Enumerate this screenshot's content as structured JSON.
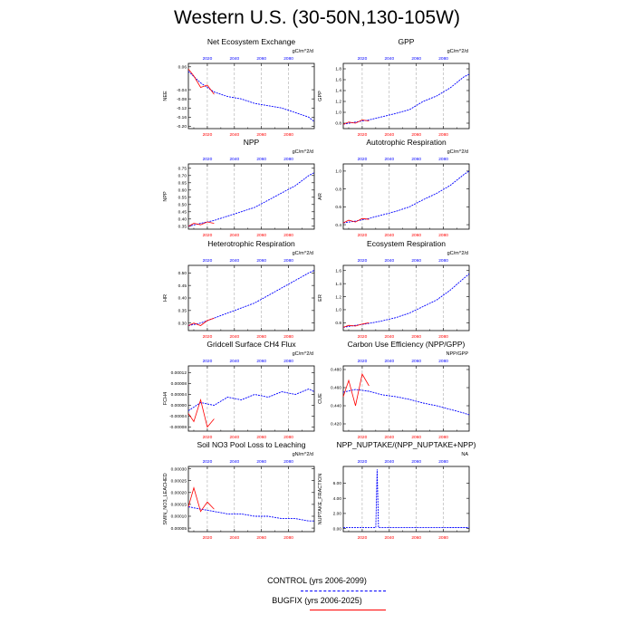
{
  "page": {
    "title": "Western U.S. (30-50N,130-105W)"
  },
  "legend": {
    "items": [
      {
        "label": "CONTROL (yrs 2006-2099)",
        "color": "#0000ff",
        "style": "dashed"
      },
      {
        "label": "BUGFIX (yrs 2006-2025)",
        "color": "#ff0000",
        "style": "solid"
      }
    ]
  },
  "chart_data": [
    {
      "type": "line",
      "title": "Net Ecosystem Exchange",
      "ylabel": "NEE",
      "units": "gC/m^2/d",
      "xlim": [
        2006,
        2099
      ],
      "xticks": [
        "2020",
        "2040",
        "2060",
        "2080"
      ],
      "ylim": [
        -0.21,
        0.075
      ],
      "yticks": [
        "0.06",
        "-0.04",
        "-0.08",
        "-0.12",
        "-0.16",
        "-0.20"
      ],
      "series": [
        {
          "name": "CONTROL",
          "x": [
            2006,
            2015,
            2025,
            2035,
            2045,
            2055,
            2065,
            2075,
            2085,
            2095,
            2099
          ],
          "y": [
            0.04,
            -0.01,
            -0.05,
            -0.07,
            -0.08,
            -0.1,
            -0.11,
            -0.12,
            -0.14,
            -0.16,
            -0.18
          ]
        },
        {
          "name": "BUGFIX",
          "x": [
            2006,
            2010,
            2015,
            2020,
            2025
          ],
          "y": [
            0.05,
            0.02,
            -0.03,
            -0.02,
            -0.06
          ]
        }
      ]
    },
    {
      "type": "line",
      "title": "GPP",
      "ylabel": "GPP",
      "units": "gC/m^2/d",
      "xlim": [
        2006,
        2099
      ],
      "xticks": [
        "2020",
        "2040",
        "2060",
        "2080"
      ],
      "ylim": [
        0.7,
        1.9
      ],
      "yticks": [
        "0.8",
        "1.0",
        "1.2",
        "1.4",
        "1.6",
        "1.8"
      ],
      "series": [
        {
          "name": "CONTROL",
          "x": [
            2006,
            2015,
            2025,
            2035,
            2045,
            2055,
            2065,
            2075,
            2085,
            2095,
            2099
          ],
          "y": [
            0.78,
            0.82,
            0.86,
            0.92,
            0.98,
            1.05,
            1.2,
            1.3,
            1.45,
            1.65,
            1.7
          ]
        },
        {
          "name": "BUGFIX",
          "x": [
            2006,
            2010,
            2015,
            2020,
            2025
          ],
          "y": [
            0.78,
            0.82,
            0.8,
            0.86,
            0.84
          ]
        }
      ]
    },
    {
      "type": "line",
      "title": "NPP",
      "ylabel": "NPP",
      "units": "gC/m^2/d",
      "xlim": [
        2006,
        2099
      ],
      "xticks": [
        "2020",
        "2040",
        "2060",
        "2080"
      ],
      "ylim": [
        0.33,
        0.78
      ],
      "yticks": [
        "0.35",
        "0.40",
        "0.45",
        "0.50",
        "0.55",
        "0.60",
        "0.65",
        "0.70",
        "0.75"
      ],
      "series": [
        {
          "name": "CONTROL",
          "x": [
            2006,
            2015,
            2025,
            2035,
            2045,
            2055,
            2065,
            2075,
            2085,
            2095,
            2099
          ],
          "y": [
            0.35,
            0.37,
            0.39,
            0.42,
            0.45,
            0.48,
            0.53,
            0.58,
            0.63,
            0.7,
            0.72
          ]
        },
        {
          "name": "BUGFIX",
          "x": [
            2006,
            2010,
            2015,
            2020,
            2025
          ],
          "y": [
            0.35,
            0.37,
            0.36,
            0.38,
            0.37
          ]
        }
      ]
    },
    {
      "type": "line",
      "title": "Autotrophic Respiration",
      "ylabel": "AR",
      "units": "gC/m^2/d",
      "xlim": [
        2006,
        2099
      ],
      "xticks": [
        "2020",
        "2040",
        "2060",
        "2080"
      ],
      "ylim": [
        0.35,
        1.08
      ],
      "yticks": [
        "0.4",
        "0.6",
        "0.8",
        "1.0"
      ],
      "series": [
        {
          "name": "CONTROL",
          "x": [
            2006,
            2015,
            2025,
            2035,
            2045,
            2055,
            2065,
            2075,
            2085,
            2095,
            2099
          ],
          "y": [
            0.42,
            0.44,
            0.47,
            0.51,
            0.55,
            0.6,
            0.68,
            0.75,
            0.84,
            0.96,
            1.0
          ]
        },
        {
          "name": "BUGFIX",
          "x": [
            2006,
            2010,
            2015,
            2020,
            2025
          ],
          "y": [
            0.42,
            0.45,
            0.43,
            0.47,
            0.46
          ]
        }
      ]
    },
    {
      "type": "line",
      "title": "Heterotrophic Respiration",
      "ylabel": "HR",
      "units": "gC/m^2/d",
      "xlim": [
        2006,
        2099
      ],
      "xticks": [
        "2020",
        "2040",
        "2060",
        "2080"
      ],
      "ylim": [
        0.27,
        0.53
      ],
      "yticks": [
        "0.30",
        "0.35",
        "0.40",
        "0.45",
        "0.50"
      ],
      "series": [
        {
          "name": "CONTROL",
          "x": [
            2006,
            2015,
            2025,
            2035,
            2045,
            2055,
            2065,
            2075,
            2085,
            2095,
            2099
          ],
          "y": [
            0.29,
            0.3,
            0.32,
            0.34,
            0.36,
            0.38,
            0.41,
            0.44,
            0.47,
            0.5,
            0.51
          ]
        },
        {
          "name": "BUGFIX",
          "x": [
            2006,
            2010,
            2015,
            2020,
            2025
          ],
          "y": [
            0.29,
            0.3,
            0.29,
            0.31,
            0.32
          ]
        }
      ]
    },
    {
      "type": "line",
      "title": "Ecosystem Respiration",
      "ylabel": "ER",
      "units": "gC/m^2/d",
      "xlim": [
        2006,
        2099
      ],
      "xticks": [
        "2020",
        "2040",
        "2060",
        "2080"
      ],
      "ylim": [
        0.68,
        1.68
      ],
      "yticks": [
        "0.8",
        "1.0",
        "1.2",
        "1.4",
        "1.6"
      ],
      "series": [
        {
          "name": "CONTROL",
          "x": [
            2006,
            2015,
            2025,
            2035,
            2045,
            2055,
            2065,
            2075,
            2085,
            2095,
            2099
          ],
          "y": [
            0.73,
            0.76,
            0.79,
            0.83,
            0.88,
            0.95,
            1.05,
            1.15,
            1.3,
            1.48,
            1.55
          ]
        },
        {
          "name": "BUGFIX",
          "x": [
            2006,
            2010,
            2015,
            2020,
            2025
          ],
          "y": [
            0.73,
            0.76,
            0.75,
            0.78,
            0.8
          ]
        }
      ]
    },
    {
      "type": "line",
      "title": "Gridcell Surface CH4 Flux",
      "ylabel": "FCH4",
      "units": "gC/m^2/d",
      "xlim": [
        2006,
        2099
      ],
      "xticks": [
        "2020",
        "2040",
        "2060",
        "2080"
      ],
      "ylim": [
        -9.5e-05,
        0.000145
      ],
      "yticks": [
        "0.00012",
        "0.00008",
        "0.00004",
        "0.00000",
        "-0.00004",
        "-0.00008"
      ],
      "series": [
        {
          "name": "CONTROL",
          "x": [
            2006,
            2015,
            2025,
            2035,
            2045,
            2055,
            2065,
            2075,
            2085,
            2095,
            2099
          ],
          "y": [
            -2e-05,
            1e-05,
            0.0,
            3e-05,
            2e-05,
            4e-05,
            3e-05,
            5e-05,
            4e-05,
            6e-05,
            5e-05
          ]
        },
        {
          "name": "BUGFIX",
          "x": [
            2006,
            2010,
            2015,
            2020,
            2025
          ],
          "y": [
            -3e-05,
            -6e-05,
            2e-05,
            -8e-05,
            -5e-05
          ]
        }
      ]
    },
    {
      "type": "line",
      "title": "Carbon Use Efficiency (NPP/GPP)",
      "ylabel": "CUE",
      "units": "NPP/GPP",
      "xlim": [
        2006,
        2099
      ],
      "xticks": [
        "2020",
        "2040",
        "2060",
        "2080"
      ],
      "ylim": [
        0.412,
        0.484
      ],
      "yticks": [
        "0.480",
        "0.460",
        "0.440",
        "0.420"
      ],
      "series": [
        {
          "name": "CONTROL",
          "x": [
            2006,
            2015,
            2025,
            2035,
            2045,
            2055,
            2065,
            2075,
            2085,
            2095,
            2099
          ],
          "y": [
            0.455,
            0.458,
            0.456,
            0.452,
            0.45,
            0.447,
            0.443,
            0.44,
            0.436,
            0.432,
            0.43
          ]
        },
        {
          "name": "BUGFIX",
          "x": [
            2006,
            2010,
            2015,
            2020,
            2025
          ],
          "y": [
            0.45,
            0.468,
            0.44,
            0.475,
            0.462
          ]
        }
      ]
    },
    {
      "type": "line",
      "title": "Soil NO3 Pool Loss to Leaching",
      "ylabel": "SMIN_NO3_LEACHED",
      "units": "gN/m^2/d",
      "xlim": [
        2006,
        2099
      ],
      "xticks": [
        "2020",
        "2040",
        "2060",
        "2080"
      ],
      "ylim": [
        3.5e-05,
        0.00031
      ],
      "yticks": [
        "0.00030",
        "0.00025",
        "0.00020",
        "0.00015",
        "0.00010",
        "0.00005"
      ],
      "series": [
        {
          "name": "CONTROL",
          "x": [
            2006,
            2015,
            2025,
            2035,
            2045,
            2055,
            2065,
            2075,
            2085,
            2095,
            2099
          ],
          "y": [
            0.00014,
            0.00013,
            0.00012,
            0.00011,
            0.00011,
            0.0001,
            0.0001,
            9e-05,
            9e-05,
            8e-05,
            8e-05
          ]
        },
        {
          "name": "BUGFIX",
          "x": [
            2006,
            2010,
            2015,
            2020,
            2025
          ],
          "y": [
            0.00014,
            0.00022,
            0.00012,
            0.00016,
            0.00013
          ]
        }
      ]
    },
    {
      "type": "line",
      "title": "NPP_NUPTAKE/(NPP_NUPTAKE+NPP)",
      "ylabel": "NUPTAKE_FRACTION",
      "units": "NA",
      "xlim": [
        2006,
        2099
      ],
      "xticks": [
        "2020",
        "2040",
        "2060",
        "2080"
      ],
      "ylim": [
        -0.4,
        8.2
      ],
      "yticks": [
        "6.00",
        "4.00",
        "2.00",
        "0.00"
      ],
      "series": [
        {
          "name": "CONTROL",
          "x": [
            2006,
            2020,
            2030,
            2031,
            2032,
            2033,
            2045,
            2065,
            2085,
            2099
          ],
          "y": [
            0.12,
            0.12,
            0.12,
            7.8,
            0.12,
            0.12,
            0.13,
            0.13,
            0.14,
            0.14
          ]
        }
      ]
    }
  ]
}
